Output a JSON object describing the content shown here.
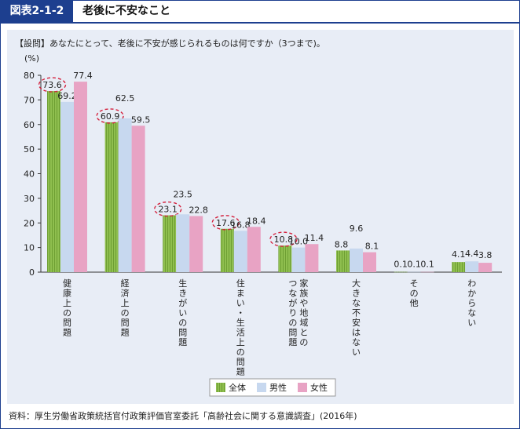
{
  "figure": {
    "number": "図表2-1-2",
    "title": "老後に不安なこと"
  },
  "question": "【設問】あなたにとって、老後に不安が感じられるものは何ですか（3つまで)。",
  "unit": "(%)",
  "source": "資料：厚生労働省政策統括官付政策評価官室委託「高齢社会に関する意識調査」(2016年)",
  "colors": {
    "frame": "#1d3f8f",
    "panel": "#e8edf6",
    "zentai": "#8fbf4f",
    "dansei": "#c7d8ef",
    "josei": "#e8a3c4",
    "highlight": "#d4213d"
  },
  "chart_data": {
    "type": "bar",
    "categories": [
      "健康上の問題",
      "経済上の問題",
      "生きがいの問題",
      "住まい・生活上の問題",
      "家族や地域との\nつながりの問題",
      "大きな不安はない",
      "その他",
      "わからない"
    ],
    "series": [
      {
        "name": "全体",
        "values": [
          73.6,
          60.9,
          23.1,
          17.6,
          10.8,
          8.8,
          0.1,
          4.1
        ]
      },
      {
        "name": "男性",
        "values": [
          69.2,
          62.5,
          23.5,
          16.8,
          10.0,
          9.6,
          0.1,
          4.4
        ]
      },
      {
        "name": "女性",
        "values": [
          77.4,
          59.5,
          22.8,
          18.4,
          11.4,
          8.1,
          0.1,
          3.8
        ]
      }
    ],
    "value_labels": [
      [
        "73.6",
        "69.2",
        "77.4"
      ],
      [
        "60.9",
        "62.5",
        "59.5"
      ],
      [
        "23.1",
        "23.5",
        "22.8"
      ],
      [
        "17.6",
        "16.8",
        "18.4"
      ],
      [
        "10.8",
        "10.0",
        "11.4"
      ],
      [
        "8.8",
        "9.6",
        "8.1"
      ],
      [
        "0.1",
        "0.1",
        "0.1"
      ],
      [
        "4.1",
        "4.4",
        "3.8"
      ]
    ],
    "highlighted_series": "全体",
    "highlighted_categories": [
      0,
      1,
      2,
      3,
      4
    ],
    "ylim": [
      0,
      80
    ],
    "yticks": [
      0,
      10,
      20,
      30,
      40,
      50,
      60,
      70,
      80
    ],
    "grid": false,
    "legend": "bottom-center",
    "xlabel": "",
    "ylabel": ""
  }
}
